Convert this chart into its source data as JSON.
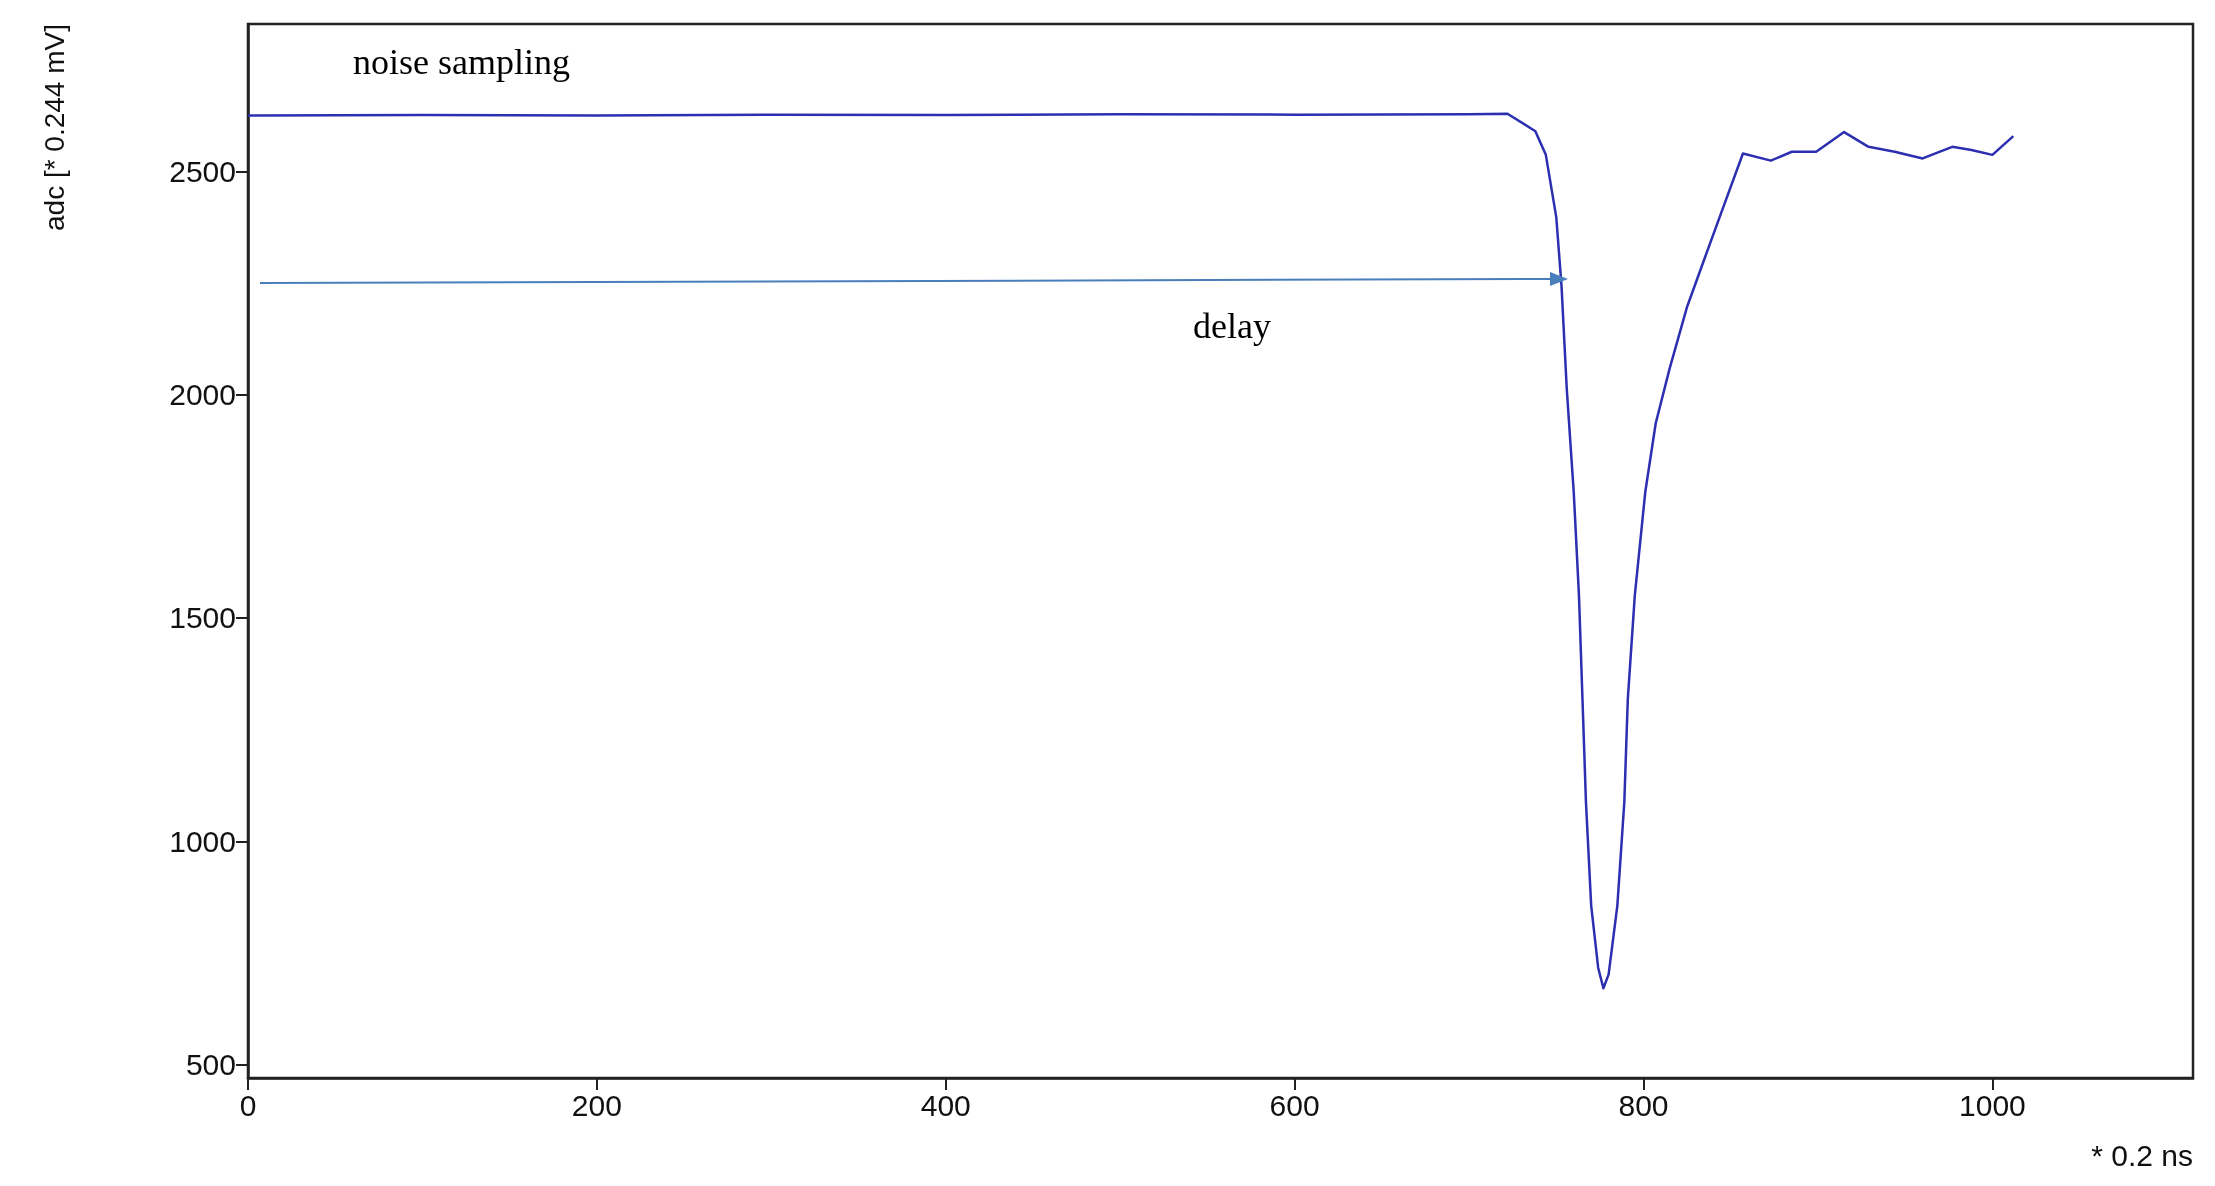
{
  "chart_data": {
    "type": "line",
    "xlabel": "* 0.2 ns",
    "ylabel": "adc [* 0.244 mV]",
    "xlim": [
      0,
      1115
    ],
    "xticks": [
      0,
      200,
      400,
      600,
      800,
      1000
    ],
    "ylim": [
      470,
      2830
    ],
    "yticks": [
      500,
      1000,
      1500,
      2000,
      2500
    ],
    "grid": false,
    "marker": "none",
    "line_style": "solid",
    "annotations": [
      "noise sampling",
      "delay"
    ],
    "series": [
      {
        "color": "#2b2fb0",
        "x": [
          0,
          100,
          200,
          300,
          400,
          500,
          600,
          700,
          722,
          738,
          744,
          750,
          753,
          756,
          760,
          763,
          765,
          767,
          770,
          774,
          777,
          780,
          785,
          789,
          791,
          795,
          801,
          807,
          815,
          825,
          835,
          845,
          857,
          873,
          885,
          899,
          915,
          929,
          944,
          960,
          977,
          988,
          1000,
          1012
        ],
        "values": [
          2625,
          2626,
          2625,
          2627,
          2626,
          2628,
          2627,
          2628,
          2629,
          2590,
          2537,
          2397,
          2243,
          2013,
          1782,
          1550,
          1319,
          1088,
          856,
          717,
          671,
          702,
          856,
          1088,
          1319,
          1550,
          1782,
          1936,
          2059,
          2197,
          2305,
          2412,
          2540,
          2524,
          2544,
          2544,
          2588,
          2555,
          2544,
          2529,
          2555,
          2548,
          2537,
          2579
        ]
      }
    ]
  }
}
